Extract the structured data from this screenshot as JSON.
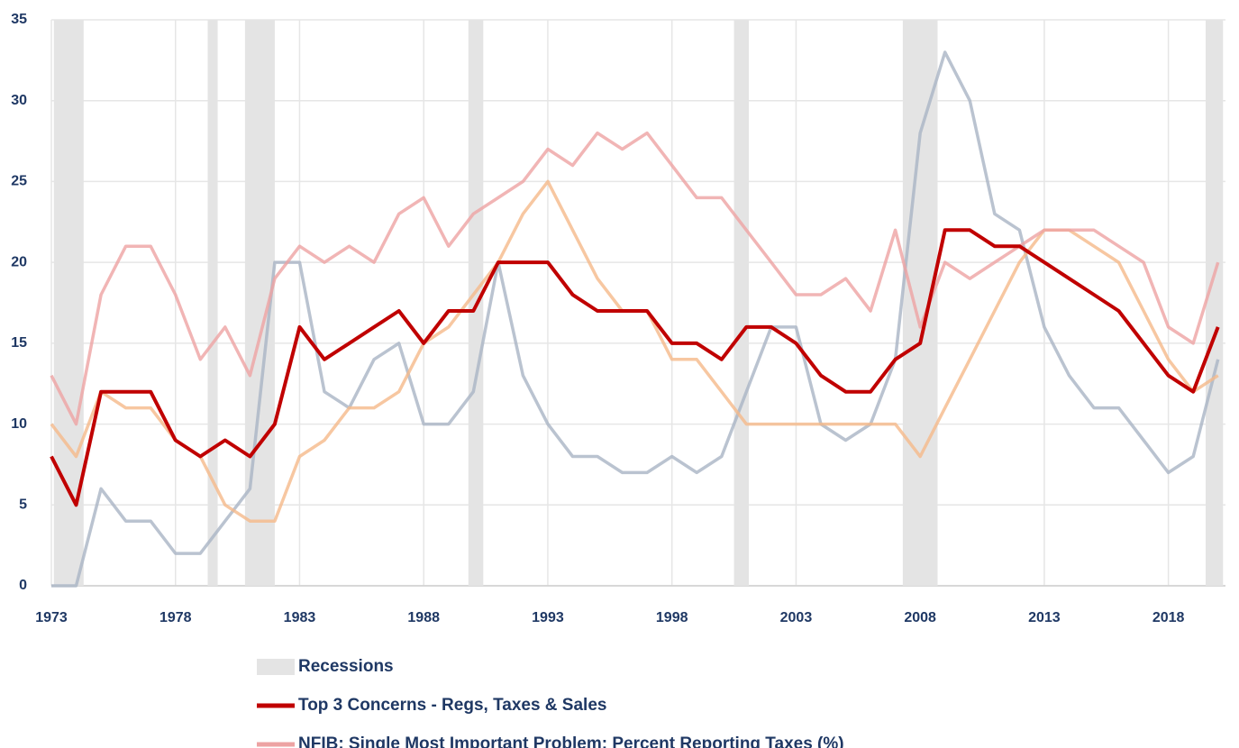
{
  "chart_data": {
    "type": "line",
    "x": [
      1973,
      1974,
      1975,
      1976,
      1977,
      1978,
      1979,
      1980,
      1981,
      1982,
      1983,
      1984,
      1985,
      1986,
      1987,
      1988,
      1989,
      1990,
      1991,
      1992,
      1993,
      1994,
      1995,
      1996,
      1997,
      1998,
      1999,
      2000,
      2001,
      2002,
      2003,
      2004,
      2005,
      2006,
      2007,
      2008,
      2009,
      2010,
      2011,
      2012,
      2013,
      2014,
      2015,
      2016,
      2017,
      2018,
      2019,
      2020
    ],
    "series": [
      {
        "color": "#a9b4c4",
        "values": [
          0,
          0,
          6,
          4,
          4,
          2,
          2,
          4,
          6,
          20,
          20,
          12,
          11,
          14,
          15,
          10,
          10,
          12,
          20,
          13,
          10,
          8,
          8,
          7,
          7,
          8,
          7,
          8,
          12,
          16,
          16,
          10,
          9,
          10,
          14,
          28,
          33,
          30,
          23,
          22,
          16,
          13,
          11,
          11,
          9,
          7,
          8,
          14
        ]
      },
      {
        "color": "#f5b98a",
        "values": [
          10,
          8,
          12,
          11,
          11,
          9,
          8,
          5,
          4,
          4,
          8,
          9,
          11,
          11,
          12,
          15,
          16,
          18,
          20,
          23,
          25,
          22,
          19,
          17,
          17,
          14,
          14,
          12,
          10,
          10,
          10,
          10,
          10,
          10,
          10,
          8,
          11,
          14,
          17,
          20,
          22,
          22,
          21,
          20,
          17,
          14,
          12,
          13
        ]
      },
      {
        "name": "NFIB: Single Most Important Problem: Percent Reporting Taxes (%)",
        "color": "#eda3a3",
        "values": [
          13,
          10,
          18,
          21,
          21,
          18,
          14,
          16,
          13,
          19,
          21,
          20,
          21,
          20,
          23,
          24,
          21,
          23,
          24,
          25,
          27,
          26,
          28,
          27,
          28,
          26,
          24,
          24,
          22,
          20,
          18,
          18,
          19,
          17,
          22,
          16,
          20,
          19,
          20,
          21,
          22,
          22,
          22,
          21,
          20,
          16,
          15,
          20
        ]
      },
      {
        "name": "Top 3 Concerns - Regs, Taxes & Sales",
        "color": "#c00000",
        "values": [
          8,
          5,
          12,
          12,
          12,
          9,
          8,
          9,
          8,
          10,
          16,
          14,
          15,
          16,
          17,
          15,
          17,
          17,
          20,
          20,
          20,
          18,
          17,
          17,
          17,
          15,
          15,
          14,
          16,
          16,
          15,
          13,
          12,
          12,
          14,
          15,
          22,
          22,
          21,
          21,
          20,
          19,
          18,
          17,
          15,
          13,
          12,
          16
        ]
      }
    ],
    "recessions_label": "Recessions",
    "recessions": [
      [
        1973.1,
        1974.3
      ],
      [
        1979.3,
        1979.7
      ],
      [
        1980.8,
        1982.0
      ],
      [
        1989.8,
        1990.4
      ],
      [
        2000.5,
        2001.1
      ],
      [
        2007.3,
        2008.7
      ],
      [
        2019.5,
        2020.2
      ]
    ],
    "xlim": [
      1973,
      2020.3
    ],
    "xticks": [
      1973,
      1978,
      1983,
      1988,
      1993,
      1998,
      2003,
      2008,
      2013,
      2018
    ],
    "ylim": [
      0,
      35
    ],
    "yticks": [
      0,
      5,
      10,
      15,
      20,
      25,
      30,
      35
    ],
    "grid": true
  }
}
